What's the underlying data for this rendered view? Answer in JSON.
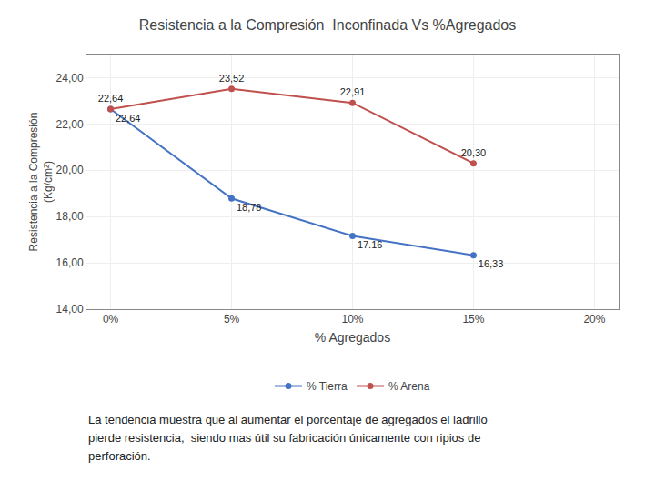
{
  "chart_data": {
    "type": "line",
    "title": "Resistencia a la Compresión  Inconfinada Vs %Agregados",
    "x_label": "% Agregados",
    "y_label": "Resistencia a la Compresión\n(Kg/cm²)",
    "x": [
      0,
      5,
      10,
      15
    ],
    "series": [
      {
        "name": "% Tierra",
        "color": "#4472C4",
        "marker": "circle",
        "values": [
          22.64,
          18.78,
          17.16,
          16.33
        ],
        "value_labels": [
          "22,64",
          "18,78",
          "17.16",
          "16,33"
        ]
      },
      {
        "name": "% Arena",
        "color": "#C0504D",
        "marker": "circle",
        "values": [
          22.64,
          23.52,
          22.91,
          20.3
        ],
        "value_labels": [
          "22,64",
          "23,52",
          "22,91",
          "20,30"
        ]
      }
    ],
    "xlim": [
      -1,
      21
    ],
    "xticks": [
      {
        "value": 0,
        "label": "0%"
      },
      {
        "value": 5,
        "label": "5%"
      },
      {
        "value": 10,
        "label": "10%"
      },
      {
        "value": 15,
        "label": "15%"
      },
      {
        "value": 20,
        "label": "20%"
      }
    ],
    "ylim": [
      14,
      25
    ],
    "yticks": [
      {
        "value": 14,
        "label": "14,00"
      },
      {
        "value": 16,
        "label": "16,00"
      },
      {
        "value": 18,
        "label": "18,00"
      },
      {
        "value": 20,
        "label": "20,00"
      },
      {
        "value": 22,
        "label": "22,00"
      },
      {
        "value": 24,
        "label": "24,00"
      }
    ],
    "grid": true,
    "legend": "bottom",
    "data_labels": true,
    "annotations": [
      "La tendencia muestra que al aumentar el porcentaje de agregados el ladrillo",
      "pierde resistencia,  siendo mas útil su fabricación únicamente con ripios de",
      "perforación."
    ]
  }
}
